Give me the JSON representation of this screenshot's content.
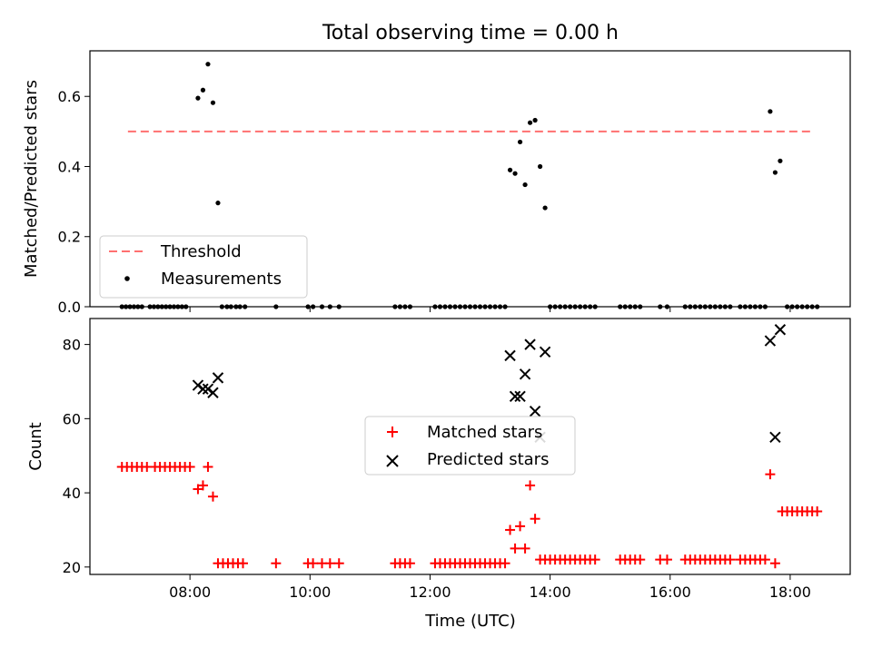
{
  "title": "Total observing time = 0.00 h",
  "colors": {
    "threshold": "#ff7070",
    "measurement": "#000000",
    "matched": "#ff0000",
    "predicted": "#000000"
  },
  "chart_data": [
    {
      "type": "scatter",
      "ylabel": "Matched/Predicted stars",
      "xlim": [
        "06:20",
        "19:00"
      ],
      "ylim": [
        0,
        0.73
      ],
      "yticks": [
        "0.0",
        "0.2",
        "0.4",
        "0.6"
      ],
      "xticks": [
        "08:00",
        "10:00",
        "12:00",
        "14:00",
        "16:00",
        "18:00"
      ],
      "legend_position": "lower-left",
      "threshold": {
        "name": "Threshold",
        "value": 0.5,
        "x": [
          "06:58",
          "18:24"
        ]
      },
      "series": [
        {
          "name": "Measurements",
          "points": [
            [
              "08:08",
              0.595
            ],
            [
              "08:13",
              0.618
            ],
            [
              "08:18",
              0.692
            ],
            [
              "08:23",
              0.582
            ],
            [
              "08:28",
              0.296
            ],
            [
              "13:20",
              0.39
            ],
            [
              "13:25",
              0.38
            ],
            [
              "13:30",
              0.47
            ],
            [
              "13:35",
              0.348
            ],
            [
              "13:40",
              0.525
            ],
            [
              "13:45",
              0.532
            ],
            [
              "13:50",
              0.4
            ],
            [
              "13:55",
              0.282
            ],
            [
              "17:40",
              0.557
            ],
            [
              "17:45",
              0.383
            ],
            [
              "17:50",
              0.416
            ],
            [
              "06:52",
              0
            ],
            [
              "06:56",
              0
            ],
            [
              "07:00",
              0
            ],
            [
              "07:04",
              0
            ],
            [
              "07:08",
              0
            ],
            [
              "07:12",
              0
            ],
            [
              "07:20",
              0
            ],
            [
              "07:24",
              0
            ],
            [
              "07:28",
              0
            ],
            [
              "07:32",
              0
            ],
            [
              "07:36",
              0
            ],
            [
              "07:40",
              0
            ],
            [
              "07:44",
              0
            ],
            [
              "07:48",
              0
            ],
            [
              "07:52",
              0
            ],
            [
              "07:56",
              0
            ],
            [
              "08:32",
              0
            ],
            [
              "08:37",
              0
            ],
            [
              "08:41",
              0
            ],
            [
              "08:46",
              0
            ],
            [
              "08:50",
              0
            ],
            [
              "08:55",
              0
            ],
            [
              "09:26",
              0
            ],
            [
              "09:58",
              0
            ],
            [
              "10:03",
              0
            ],
            [
              "10:12",
              0
            ],
            [
              "10:20",
              0
            ],
            [
              "10:29",
              0
            ],
            [
              "11:25",
              0
            ],
            [
              "11:30",
              0
            ],
            [
              "11:35",
              0
            ],
            [
              "11:40",
              0
            ],
            [
              "12:05",
              0
            ],
            [
              "12:10",
              0
            ],
            [
              "12:15",
              0
            ],
            [
              "12:20",
              0
            ],
            [
              "12:25",
              0
            ],
            [
              "12:30",
              0
            ],
            [
              "12:35",
              0
            ],
            [
              "12:40",
              0
            ],
            [
              "12:45",
              0
            ],
            [
              "12:50",
              0
            ],
            [
              "12:55",
              0
            ],
            [
              "13:00",
              0
            ],
            [
              "13:05",
              0
            ],
            [
              "13:10",
              0
            ],
            [
              "13:15",
              0
            ],
            [
              "14:00",
              0
            ],
            [
              "14:05",
              0
            ],
            [
              "14:10",
              0
            ],
            [
              "14:15",
              0
            ],
            [
              "14:20",
              0
            ],
            [
              "14:25",
              0
            ],
            [
              "14:30",
              0
            ],
            [
              "14:35",
              0
            ],
            [
              "14:40",
              0
            ],
            [
              "14:45",
              0
            ],
            [
              "15:10",
              0
            ],
            [
              "15:15",
              0
            ],
            [
              "15:20",
              0
            ],
            [
              "15:25",
              0
            ],
            [
              "15:30",
              0
            ],
            [
              "15:50",
              0
            ],
            [
              "15:57",
              0
            ],
            [
              "16:15",
              0
            ],
            [
              "16:20",
              0
            ],
            [
              "16:25",
              0
            ],
            [
              "16:30",
              0
            ],
            [
              "16:35",
              0
            ],
            [
              "16:40",
              0
            ],
            [
              "16:45",
              0
            ],
            [
              "16:50",
              0
            ],
            [
              "16:55",
              0
            ],
            [
              "17:00",
              0
            ],
            [
              "17:10",
              0
            ],
            [
              "17:15",
              0
            ],
            [
              "17:20",
              0
            ],
            [
              "17:25",
              0
            ],
            [
              "17:30",
              0
            ],
            [
              "17:35",
              0
            ],
            [
              "17:57",
              0
            ],
            [
              "18:02",
              0
            ],
            [
              "18:07",
              0
            ],
            [
              "18:12",
              0
            ],
            [
              "18:17",
              0
            ],
            [
              "18:22",
              0
            ],
            [
              "18:27",
              0
            ]
          ]
        }
      ]
    },
    {
      "type": "scatter",
      "xlabel": "Time (UTC)",
      "ylabel": "Count",
      "xlim": [
        "06:20",
        "19:00"
      ],
      "ylim": [
        18,
        87
      ],
      "yticks": [
        "20",
        "40",
        "60",
        "80"
      ],
      "xticks": [
        "08:00",
        "10:00",
        "12:00",
        "14:00",
        "16:00",
        "18:00"
      ],
      "legend_position": "center",
      "series": [
        {
          "name": "Matched stars",
          "points": [
            [
              "06:52",
              47
            ],
            [
              "06:57",
              47
            ],
            [
              "07:02",
              47
            ],
            [
              "07:07",
              47
            ],
            [
              "07:12",
              47
            ],
            [
              "07:17",
              47
            ],
            [
              "07:25",
              47
            ],
            [
              "07:30",
              47
            ],
            [
              "07:35",
              47
            ],
            [
              "07:40",
              47
            ],
            [
              "07:45",
              47
            ],
            [
              "07:50",
              47
            ],
            [
              "07:55",
              47
            ],
            [
              "08:00",
              47
            ],
            [
              "08:08",
              41
            ],
            [
              "08:13",
              42
            ],
            [
              "08:18",
              47
            ],
            [
              "08:23",
              39
            ],
            [
              "08:28",
              21
            ],
            [
              "08:33",
              21
            ],
            [
              "08:38",
              21
            ],
            [
              "08:43",
              21
            ],
            [
              "08:48",
              21
            ],
            [
              "08:53",
              21
            ],
            [
              "09:26",
              21
            ],
            [
              "09:58",
              21
            ],
            [
              "10:03",
              21
            ],
            [
              "10:12",
              21
            ],
            [
              "10:20",
              21
            ],
            [
              "10:29",
              21
            ],
            [
              "11:25",
              21
            ],
            [
              "11:30",
              21
            ],
            [
              "11:35",
              21
            ],
            [
              "11:40",
              21
            ],
            [
              "12:05",
              21
            ],
            [
              "12:10",
              21
            ],
            [
              "12:15",
              21
            ],
            [
              "12:20",
              21
            ],
            [
              "12:25",
              21
            ],
            [
              "12:30",
              21
            ],
            [
              "12:35",
              21
            ],
            [
              "12:40",
              21
            ],
            [
              "12:45",
              21
            ],
            [
              "12:50",
              21
            ],
            [
              "12:55",
              21
            ],
            [
              "13:00",
              21
            ],
            [
              "13:05",
              21
            ],
            [
              "13:10",
              21
            ],
            [
              "13:15",
              21
            ],
            [
              "13:20",
              30
            ],
            [
              "13:25",
              25
            ],
            [
              "13:30",
              31
            ],
            [
              "13:35",
              25
            ],
            [
              "13:40",
              42
            ],
            [
              "13:45",
              33
            ],
            [
              "13:50",
              22
            ],
            [
              "13:55",
              22
            ],
            [
              "14:00",
              22
            ],
            [
              "14:05",
              22
            ],
            [
              "14:10",
              22
            ],
            [
              "14:15",
              22
            ],
            [
              "14:20",
              22
            ],
            [
              "14:25",
              22
            ],
            [
              "14:30",
              22
            ],
            [
              "14:35",
              22
            ],
            [
              "14:40",
              22
            ],
            [
              "14:45",
              22
            ],
            [
              "15:10",
              22
            ],
            [
              "15:15",
              22
            ],
            [
              "15:20",
              22
            ],
            [
              "15:25",
              22
            ],
            [
              "15:30",
              22
            ],
            [
              "15:50",
              22
            ],
            [
              "15:57",
              22
            ],
            [
              "16:15",
              22
            ],
            [
              "16:20",
              22
            ],
            [
              "16:25",
              22
            ],
            [
              "16:30",
              22
            ],
            [
              "16:35",
              22
            ],
            [
              "16:40",
              22
            ],
            [
              "16:45",
              22
            ],
            [
              "16:50",
              22
            ],
            [
              "16:55",
              22
            ],
            [
              "17:00",
              22
            ],
            [
              "17:10",
              22
            ],
            [
              "17:15",
              22
            ],
            [
              "17:20",
              22
            ],
            [
              "17:25",
              22
            ],
            [
              "17:30",
              22
            ],
            [
              "17:35",
              22
            ],
            [
              "17:40",
              45
            ],
            [
              "17:45",
              21
            ],
            [
              "17:52",
              35
            ],
            [
              "17:57",
              35
            ],
            [
              "18:02",
              35
            ],
            [
              "18:07",
              35
            ],
            [
              "18:12",
              35
            ],
            [
              "18:17",
              35
            ],
            [
              "18:22",
              35
            ],
            [
              "18:27",
              35
            ]
          ]
        },
        {
          "name": "Predicted stars",
          "points": [
            [
              "08:08",
              69
            ],
            [
              "08:13",
              68
            ],
            [
              "08:18",
              68
            ],
            [
              "08:23",
              67
            ],
            [
              "08:28",
              71
            ],
            [
              "13:20",
              77
            ],
            [
              "13:25",
              66
            ],
            [
              "13:30",
              66
            ],
            [
              "13:35",
              72
            ],
            [
              "13:40",
              80
            ],
            [
              "13:45",
              62
            ],
            [
              "13:50",
              55
            ],
            [
              "13:55",
              78
            ],
            [
              "17:40",
              81
            ],
            [
              "17:45",
              55
            ],
            [
              "17:50",
              84
            ]
          ]
        }
      ]
    }
  ]
}
